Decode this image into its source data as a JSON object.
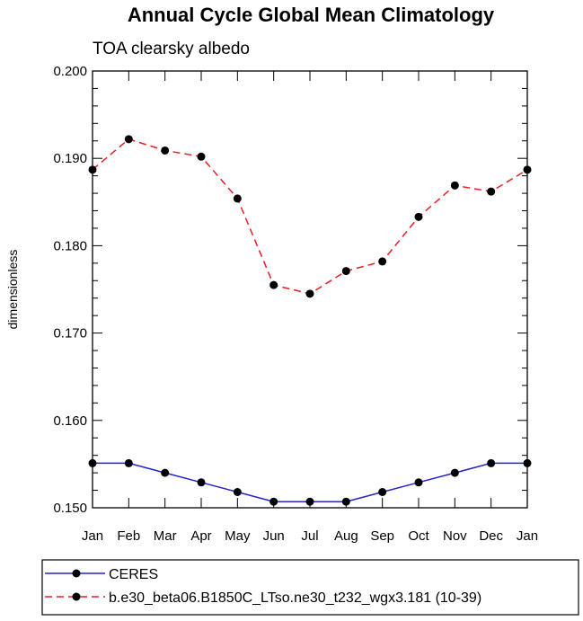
{
  "chart_data": {
    "type": "line",
    "title": "Annual Cycle Global Mean Climatology",
    "subtitle": "TOA clearsky albedo",
    "xlabel": "",
    "ylabel": "dimensionless",
    "categories": [
      "Jan",
      "Feb",
      "Mar",
      "Apr",
      "May",
      "Jun",
      "Jul",
      "Aug",
      "Sep",
      "Oct",
      "Nov",
      "Dec",
      "Jan"
    ],
    "ylim": [
      0.15,
      0.2
    ],
    "yticks": [
      0.15,
      0.16,
      0.17,
      0.18,
      0.19,
      0.2
    ],
    "ytick_labels": [
      "0.150",
      "0.160",
      "0.170",
      "0.180",
      "0.190",
      "0.200"
    ],
    "grid": false,
    "legend_position": "bottom",
    "series": [
      {
        "name": "CERES",
        "color": "#2424c8",
        "line_style": "solid",
        "marker": "circle",
        "values": [
          0.1551,
          0.1551,
          0.154,
          0.1529,
          0.1518,
          0.1507,
          0.1507,
          0.1507,
          0.1518,
          0.1529,
          0.154,
          0.1551,
          0.1551
        ]
      },
      {
        "name": "b.e30_beta06.B1850C_LTso.ne30_t232_wgx3.181 (10-39)",
        "color": "#ee1c24",
        "line_style": "dashed",
        "marker": "circle",
        "values": [
          0.1887,
          0.1922,
          0.1909,
          0.1902,
          0.1854,
          0.1755,
          0.1745,
          0.1771,
          0.1782,
          0.1833,
          0.1869,
          0.1862,
          0.1887
        ]
      }
    ]
  }
}
